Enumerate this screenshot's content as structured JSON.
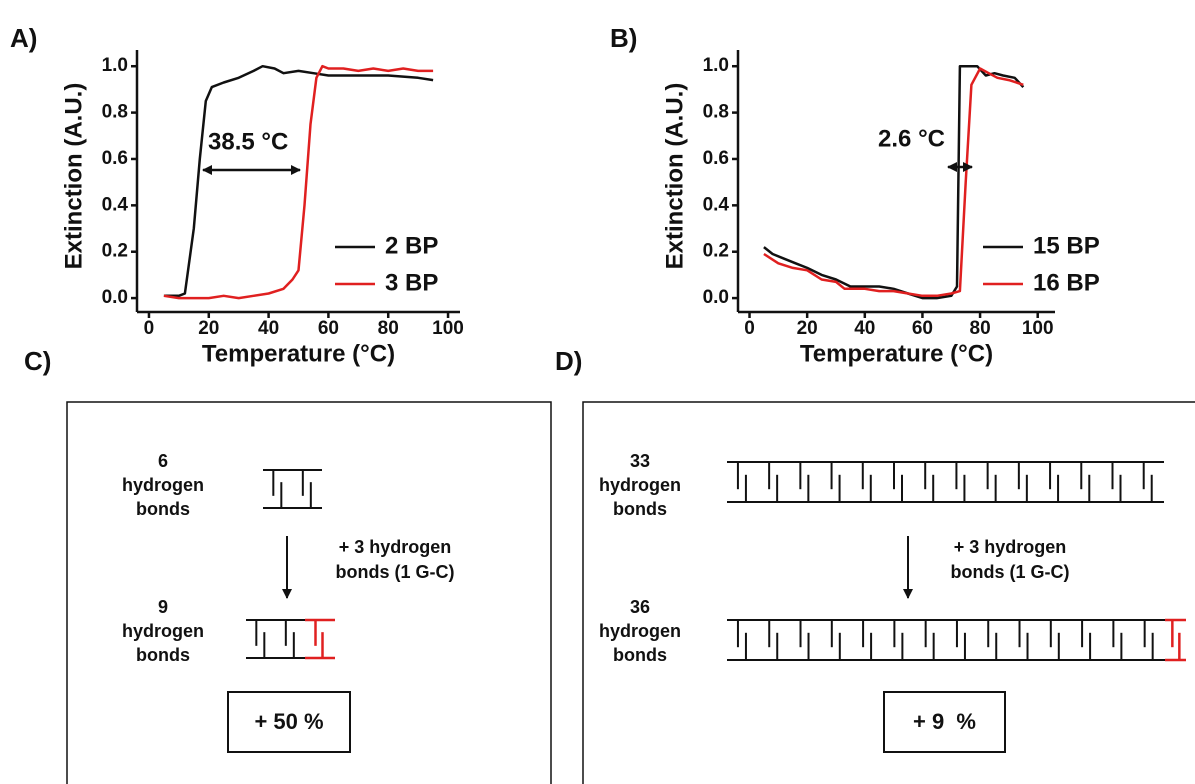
{
  "chart_data": [
    {
      "type": "line",
      "panel_label": "A)",
      "x_label": "Temperature (°C)",
      "y_label": "Extinction (A.U.)",
      "annotation": "38.5 °C",
      "legend": "lower right",
      "xlim": [
        -4,
        104
      ],
      "ylim": [
        -0.06,
        1.07
      ],
      "xticks": [
        0,
        20,
        40,
        60,
        80,
        100
      ],
      "yticks": [
        {
          "value": 0,
          "label": "0.0"
        },
        {
          "value": 0.2,
          "label": "0.2"
        },
        {
          "value": 0.4,
          "label": "0.4"
        },
        {
          "value": 0.6,
          "label": "0.6"
        },
        {
          "value": 0.8,
          "label": "0.8"
        },
        {
          "value": 1,
          "label": "1.0"
        }
      ],
      "series": [
        {
          "name": "2 BP",
          "color": "#111111",
          "x": [
            5,
            10,
            12,
            15,
            17,
            19,
            21,
            25,
            30,
            35,
            38,
            42,
            45,
            50,
            55,
            60,
            70,
            80,
            90,
            95
          ],
          "values": [
            0.01,
            0.01,
            0.02,
            0.3,
            0.6,
            0.85,
            0.91,
            0.93,
            0.95,
            0.98,
            1.0,
            0.99,
            0.97,
            0.98,
            0.97,
            0.96,
            0.96,
            0.96,
            0.95,
            0.94
          ]
        },
        {
          "name": "3 BP",
          "color": "#e02020",
          "x": [
            5,
            10,
            15,
            20,
            25,
            30,
            35,
            40,
            45,
            48,
            50,
            52,
            54,
            56,
            58,
            60,
            65,
            70,
            75,
            80,
            85,
            90,
            95
          ],
          "values": [
            0.01,
            0.0,
            0.0,
            0.0,
            0.01,
            0.0,
            0.01,
            0.02,
            0.04,
            0.08,
            0.12,
            0.4,
            0.75,
            0.95,
            1.0,
            0.99,
            0.99,
            0.98,
            0.99,
            0.98,
            0.99,
            0.98,
            0.98
          ]
        }
      ]
    },
    {
      "type": "line",
      "panel_label": "B)",
      "x_label": "Temperature (°C)",
      "y_label": "Extinction (A.U.)",
      "annotation": "2.6 °C",
      "legend": "lower right",
      "xlim": [
        -4,
        106
      ],
      "ylim": [
        -0.06,
        1.07
      ],
      "xticks": [
        0,
        20,
        40,
        60,
        80,
        100
      ],
      "yticks": [
        {
          "value": 0,
          "label": "0.0"
        },
        {
          "value": 0.2,
          "label": "0.2"
        },
        {
          "value": 0.4,
          "label": "0.4"
        },
        {
          "value": 0.6,
          "label": "0.6"
        },
        {
          "value": 0.8,
          "label": "0.8"
        },
        {
          "value": 1,
          "label": "1.0"
        }
      ],
      "series": [
        {
          "name": "15 BP",
          "color": "#111111",
          "x": [
            5,
            8,
            12,
            16,
            20,
            25,
            30,
            35,
            40,
            45,
            50,
            55,
            60,
            65,
            70,
            72,
            73,
            76,
            79,
            82,
            85,
            88,
            92,
            95
          ],
          "values": [
            0.22,
            0.19,
            0.17,
            0.15,
            0.13,
            0.1,
            0.08,
            0.05,
            0.05,
            0.05,
            0.04,
            0.02,
            0.0,
            0.0,
            0.01,
            0.05,
            1.0,
            1.0,
            1.0,
            0.96,
            0.97,
            0.96,
            0.95,
            0.91
          ]
        },
        {
          "name": "16 BP",
          "color": "#e02020",
          "x": [
            5,
            10,
            15,
            20,
            25,
            30,
            33,
            40,
            45,
            50,
            55,
            60,
            65,
            70,
            73,
            75,
            77,
            80,
            83,
            86,
            90,
            95
          ],
          "values": [
            0.19,
            0.15,
            0.13,
            0.12,
            0.08,
            0.07,
            0.04,
            0.04,
            0.03,
            0.03,
            0.02,
            0.01,
            0.01,
            0.02,
            0.03,
            0.5,
            0.92,
            0.99,
            0.97,
            0.95,
            0.94,
            0.92
          ]
        }
      ]
    }
  ],
  "diagrams": [
    {
      "label": "C)",
      "before": [
        "6",
        "hydrogen",
        "bonds"
      ],
      "change": [
        "+ 3 hydrogen",
        "bonds (1 G-C)"
      ],
      "after": [
        "9",
        "hydrogen",
        "bonds"
      ],
      "result": "+ 50 %"
    },
    {
      "label": "D)",
      "before": [
        "33",
        "hydrogen",
        "bonds"
      ],
      "change": [
        "+ 3 hydrogen",
        "bonds (1 G-C)"
      ],
      "after": [
        "36",
        "hydrogen",
        "bonds"
      ],
      "result": "+ 9  %"
    }
  ]
}
